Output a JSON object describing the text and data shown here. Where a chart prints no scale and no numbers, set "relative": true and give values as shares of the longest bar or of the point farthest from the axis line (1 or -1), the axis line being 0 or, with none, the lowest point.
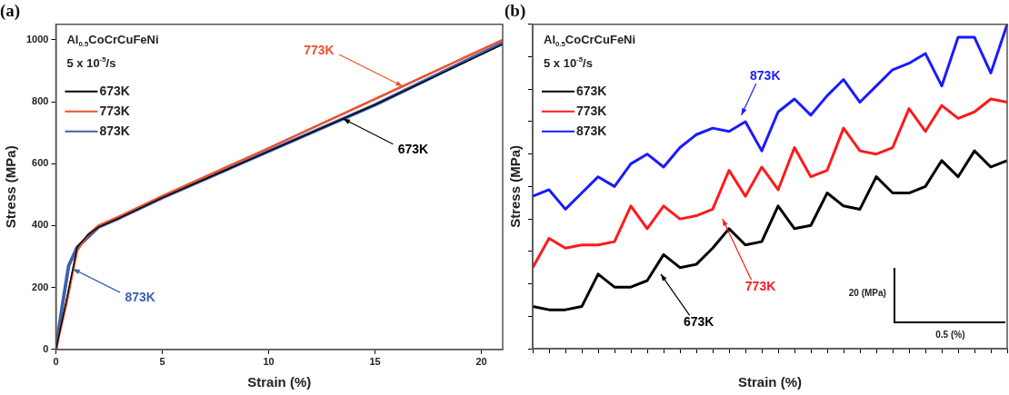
{
  "chart_data": [
    {
      "type": "line",
      "title": "(a)",
      "xlabel": "Strain (%)",
      "ylabel": "Stress (MPa)",
      "xlim": [
        0,
        21
      ],
      "ylim": [
        0,
        1050
      ],
      "xticks": [
        0,
        5,
        10,
        15,
        20
      ],
      "yticks": [
        0,
        200,
        400,
        600,
        800,
        1000
      ],
      "grid": false,
      "legend": "top left",
      "marker": "none",
      "line_style": "solid",
      "annotations": [
        "Al$_{0.5}$CoCrCuFeNi",
        "5 x 10$^{-5}$/s",
        {
          "text": "773K",
          "x": 16.3,
          "y": 850
        },
        {
          "text": "673K",
          "x": 13.5,
          "y": 745
        },
        {
          "text": "873K",
          "x": 0.8,
          "y": 260
        }
      ],
      "series": [
        {
          "name": "673K",
          "color": "#000000",
          "x": [
            0,
            0.5,
            1,
            1.5,
            2,
            3,
            5,
            10,
            15,
            21
          ],
          "values": [
            0,
            160,
            330,
            370,
            395,
            425,
            490,
            640,
            790,
            985
          ]
        },
        {
          "name": "773K",
          "color": "#e8532f",
          "x": [
            0,
            0.5,
            1,
            1.5,
            2,
            3,
            5,
            10,
            16.3,
            21
          ],
          "values": [
            0,
            150,
            320,
            370,
            400,
            430,
            495,
            650,
            850,
            1000
          ]
        },
        {
          "name": "873K",
          "color": "#3d5fb0",
          "x": [
            0,
            0.3,
            0.6,
            1,
            2,
            3,
            5,
            10,
            15,
            21
          ],
          "values": [
            0,
            140,
            270,
            330,
            395,
            425,
            490,
            640,
            790,
            990
          ]
        }
      ]
    },
    {
      "type": "line",
      "title": "(b)",
      "xlabel": "Strain (%)",
      "ylabel": "Stress (MPa)",
      "relative": true,
      "tick_labels": false,
      "grid": false,
      "legend": "top left",
      "marker": "none",
      "line_style": "solid",
      "categories": [
        null,
        null,
        null,
        null,
        null,
        null,
        null,
        null,
        null,
        null,
        null,
        null,
        null,
        null,
        null,
        null,
        null,
        null,
        null,
        null,
        null,
        null,
        null,
        null,
        null,
        null,
        null,
        null,
        null,
        null
      ],
      "annotations": [
        "Al$_{0.5}$CoCrCuFeNi",
        "5 x 10$^{-5}$/s",
        "873K",
        "773K",
        "673K",
        "20 (MPa)",
        "0.5 (%)"
      ],
      "series": [
        {
          "name": "673K",
          "color": "#000000",
          "values": [
            0.13,
            0.12,
            0.12,
            0.13,
            0.23,
            0.19,
            0.19,
            0.21,
            0.29,
            0.25,
            0.26,
            0.31,
            0.37,
            0.32,
            0.33,
            0.44,
            0.37,
            0.38,
            0.48,
            0.44,
            0.43,
            0.53,
            0.48,
            0.48,
            0.5,
            0.58,
            0.53,
            0.61,
            0.56,
            0.58
          ]
        },
        {
          "name": "773K",
          "color": "#ff1a1a",
          "values": [
            0.25,
            0.34,
            0.31,
            0.32,
            0.32,
            0.33,
            0.44,
            0.37,
            0.44,
            0.4,
            0.41,
            0.43,
            0.55,
            0.47,
            0.56,
            0.49,
            0.62,
            0.53,
            0.55,
            0.68,
            0.61,
            0.6,
            0.62,
            0.74,
            0.67,
            0.75,
            0.71,
            0.73,
            0.77,
            0.76
          ]
        },
        {
          "name": "873K",
          "color": "#1a1aff",
          "values": [
            0.47,
            0.49,
            0.43,
            0.48,
            0.53,
            0.5,
            0.57,
            0.6,
            0.56,
            0.62,
            0.66,
            0.68,
            0.67,
            0.7,
            0.61,
            0.73,
            0.77,
            0.72,
            0.78,
            0.83,
            0.76,
            0.81,
            0.86,
            0.88,
            0.91,
            0.81,
            0.96,
            0.96,
            0.85,
            1
          ]
        }
      ]
    }
  ]
}
